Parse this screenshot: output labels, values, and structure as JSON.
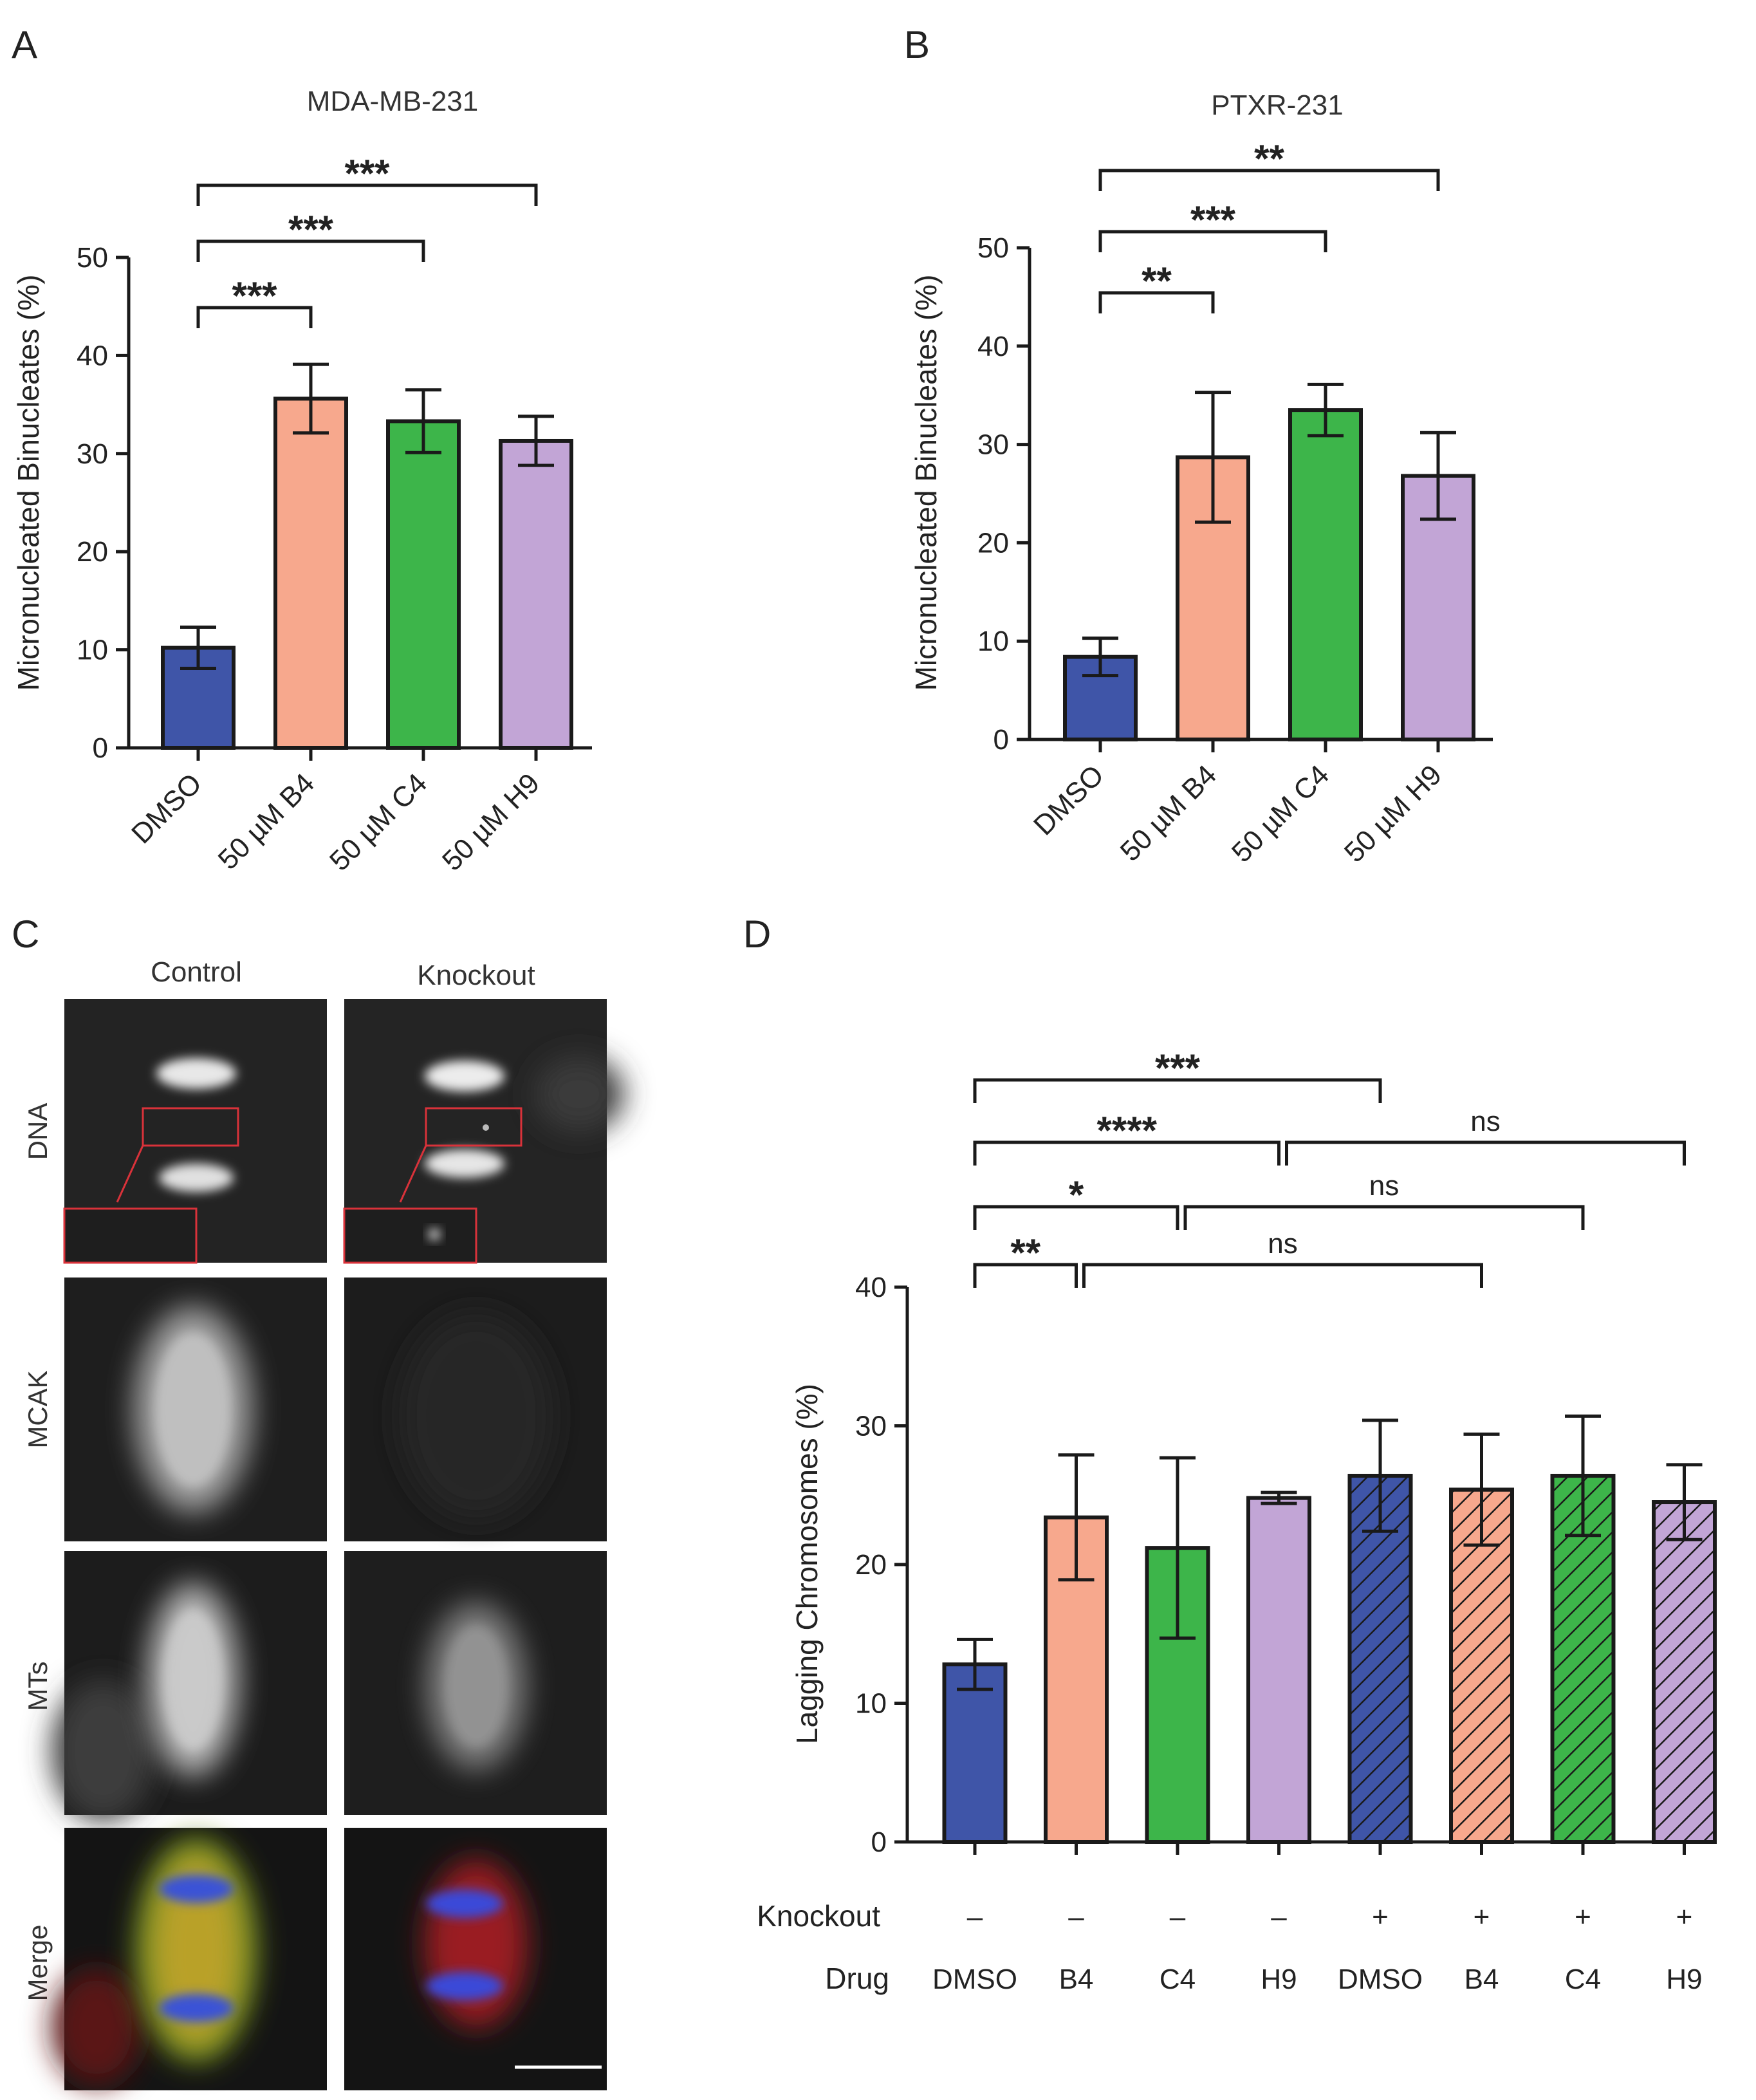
{
  "colors": {
    "dmso": "#3f55a8",
    "b4": "#f7a88d",
    "c4": "#3db54a",
    "h9": "#c2a5d6",
    "axis": "#1a1a1a",
    "inset": "#d9323a"
  },
  "panels": {
    "A": {
      "letter": "A"
    },
    "B": {
      "letter": "B"
    },
    "C": {
      "letter": "C",
      "columns": [
        "Control",
        "Knockout"
      ],
      "rows": [
        "DNA",
        "MCAK",
        "MTs",
        "Merge"
      ]
    },
    "D": {
      "letter": "D",
      "row_labels": {
        "knockout": "Knockout",
        "drug": "Drug"
      },
      "knockout": [
        "–",
        "–",
        "–",
        "–",
        "+",
        "+",
        "+",
        "+"
      ],
      "drug": [
        "DMSO",
        "B4",
        "C4",
        "H9",
        "DMSO",
        "B4",
        "C4",
        "H9"
      ]
    }
  },
  "chart_data": [
    {
      "id": "A",
      "type": "bar",
      "title": "MDA-MB-231",
      "categories": [
        "DMSO",
        "50 µM B4",
        "50 µM C4",
        "50 µM H9"
      ],
      "values": [
        10.2,
        35.6,
        33.3,
        31.3
      ],
      "errors": [
        2.1,
        3.5,
        3.2,
        2.5
      ],
      "ylabel": "Micronucleated Binucleates (%)",
      "ylim": [
        0,
        50
      ],
      "yticks": [
        0,
        10,
        20,
        30,
        40,
        50
      ],
      "significance": [
        {
          "from": 0,
          "to": 1,
          "label": "***"
        },
        {
          "from": 0,
          "to": 2,
          "label": "***"
        },
        {
          "from": 0,
          "to": 3,
          "label": "***"
        }
      ]
    },
    {
      "id": "B",
      "type": "bar",
      "title": "PTXR-231",
      "categories": [
        "DMSO",
        "50 µM B4",
        "50 µM C4",
        "50 µM H9"
      ],
      "values": [
        8.4,
        28.7,
        33.5,
        26.8
      ],
      "errors": [
        1.9,
        6.6,
        2.6,
        4.4
      ],
      "ylabel": "Micronucleated Binucleates (%)",
      "ylim": [
        0,
        50
      ],
      "yticks": [
        0,
        10,
        20,
        30,
        40,
        50
      ],
      "significance": [
        {
          "from": 0,
          "to": 1,
          "label": "**"
        },
        {
          "from": 0,
          "to": 2,
          "label": "***"
        },
        {
          "from": 0,
          "to": 3,
          "label": "**"
        }
      ]
    },
    {
      "id": "D",
      "type": "bar",
      "categories": [
        "DMSO",
        "B4",
        "C4",
        "H9",
        "DMSO",
        "B4",
        "C4",
        "H9"
      ],
      "values": [
        12.8,
        23.4,
        21.2,
        24.8,
        26.4,
        25.4,
        26.4,
        24.5
      ],
      "errors": [
        1.8,
        4.5,
        6.5,
        0.4,
        4.0,
        4.0,
        4.3,
        2.7
      ],
      "hatched": [
        false,
        false,
        false,
        false,
        true,
        true,
        true,
        true
      ],
      "ylabel": "Lagging Chromosomes (%)",
      "ylim": [
        0,
        40
      ],
      "yticks": [
        0,
        10,
        20,
        30,
        40
      ],
      "significance": [
        {
          "from": 0,
          "to": 1,
          "label": "**"
        },
        {
          "from": 0,
          "to": 2,
          "label": "*"
        },
        {
          "from": 0,
          "to": 3,
          "label": "****"
        },
        {
          "from": 0,
          "to": 4,
          "label": "***"
        },
        {
          "from": 1,
          "to": 5,
          "label": "ns"
        },
        {
          "from": 2,
          "to": 6,
          "label": "ns"
        },
        {
          "from": 3,
          "to": 7,
          "label": "ns"
        }
      ]
    }
  ]
}
